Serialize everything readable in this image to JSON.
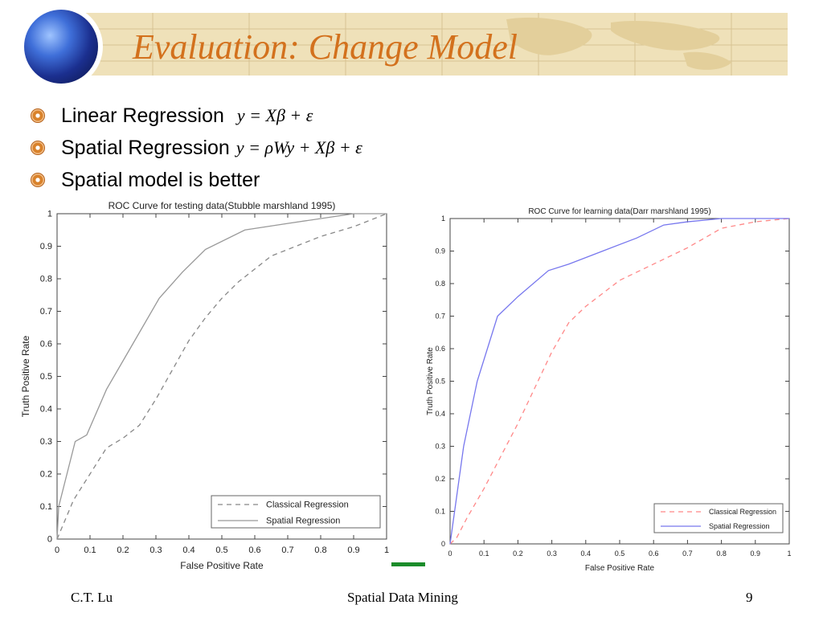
{
  "slide": {
    "title": "Evaluation: Change Model",
    "bullets": [
      {
        "text": "Linear Regression",
        "formula": "y = Xβ + ε"
      },
      {
        "text": "Spatial Regression",
        "formula": "y = ρWy + Xβ + ε"
      },
      {
        "text": "Spatial model is better",
        "formula": ""
      }
    ],
    "footer": {
      "left": "C.T. Lu",
      "center": "Spatial Data Mining",
      "right": "9"
    },
    "colors": {
      "title": "#d3711d",
      "banner": "#efe1b9",
      "accent_bar": "#1a8c2a"
    },
    "icons": {
      "globe": "globe-icon",
      "bullet": "bullet-icon"
    }
  },
  "chart_data": [
    {
      "type": "line",
      "title": "ROC Curve for testing data(Stubble marshland 1995)",
      "xlabel": "False Positive Rate",
      "ylabel": "Truth Positive Rate",
      "xlim": [
        0,
        1
      ],
      "ylim": [
        0,
        1
      ],
      "xticks": [
        "0",
        "0.1",
        "0.2",
        "0.3",
        "0.4",
        "0.5",
        "0.6",
        "0.7",
        "0.8",
        "0.9",
        "1"
      ],
      "yticks": [
        "0",
        "0.1",
        "0.2",
        "0.3",
        "0.4",
        "0.5",
        "0.6",
        "0.7",
        "0.8",
        "0.9",
        "1"
      ],
      "grid": false,
      "legend": "bottom-right",
      "series": [
        {
          "name": "Classical Regression",
          "color": "#888888",
          "style": "dashed",
          "x": [
            0,
            0.05,
            0.1,
            0.15,
            0.2,
            0.25,
            0.3,
            0.35,
            0.4,
            0.45,
            0.5,
            0.55,
            0.6,
            0.65,
            0.7,
            0.8,
            0.9,
            1.0
          ],
          "y": [
            0,
            0.12,
            0.2,
            0.28,
            0.31,
            0.35,
            0.43,
            0.52,
            0.61,
            0.68,
            0.74,
            0.79,
            0.83,
            0.87,
            0.89,
            0.93,
            0.96,
            1.0
          ]
        },
        {
          "name": "Spatial Regression",
          "color": "#999999",
          "style": "solid",
          "x": [
            0,
            0.005,
            0.055,
            0.09,
            0.15,
            0.23,
            0.31,
            0.38,
            0.45,
            0.57,
            0.7,
            0.9,
            1.0
          ],
          "y": [
            0,
            0.1,
            0.3,
            0.32,
            0.46,
            0.6,
            0.74,
            0.82,
            0.89,
            0.95,
            0.97,
            1.0,
            1.0
          ]
        }
      ]
    },
    {
      "type": "line",
      "title": "ROC Curve for learning data(Darr marshland 1995)",
      "xlabel": "False Positive Rate",
      "ylabel": "Truth Positive Rate",
      "xlim": [
        0,
        1
      ],
      "ylim": [
        0,
        1
      ],
      "xticks": [
        "0",
        "0.1",
        "0.2",
        "0.3",
        "0.4",
        "0.5",
        "0.6",
        "0.7",
        "0.8",
        "0.9",
        "1"
      ],
      "yticks": [
        "0",
        "0.1",
        "0.2",
        "0.3",
        "0.4",
        "0.5",
        "0.6",
        "0.7",
        "0.8",
        "0.9",
        "1"
      ],
      "grid": false,
      "legend": "bottom-right",
      "series": [
        {
          "name": "Classical Regression",
          "color": "#ff8888",
          "style": "dashed",
          "x": [
            0,
            0.02,
            0.05,
            0.1,
            0.15,
            0.2,
            0.25,
            0.3,
            0.35,
            0.4,
            0.45,
            0.5,
            0.6,
            0.7,
            0.8,
            0.9,
            1.0
          ],
          "y": [
            0,
            0.02,
            0.08,
            0.17,
            0.27,
            0.37,
            0.48,
            0.59,
            0.68,
            0.73,
            0.77,
            0.81,
            0.86,
            0.91,
            0.97,
            0.99,
            1.0
          ]
        },
        {
          "name": "Spatial Regression",
          "color": "#7777ee",
          "style": "solid",
          "x": [
            0,
            0.04,
            0.08,
            0.14,
            0.2,
            0.29,
            0.35,
            0.45,
            0.55,
            0.63,
            0.7,
            0.8,
            0.9,
            1.0
          ],
          "y": [
            0,
            0.3,
            0.5,
            0.7,
            0.76,
            0.84,
            0.86,
            0.9,
            0.94,
            0.98,
            0.99,
            1.0,
            1.0,
            1.0
          ]
        }
      ]
    }
  ]
}
